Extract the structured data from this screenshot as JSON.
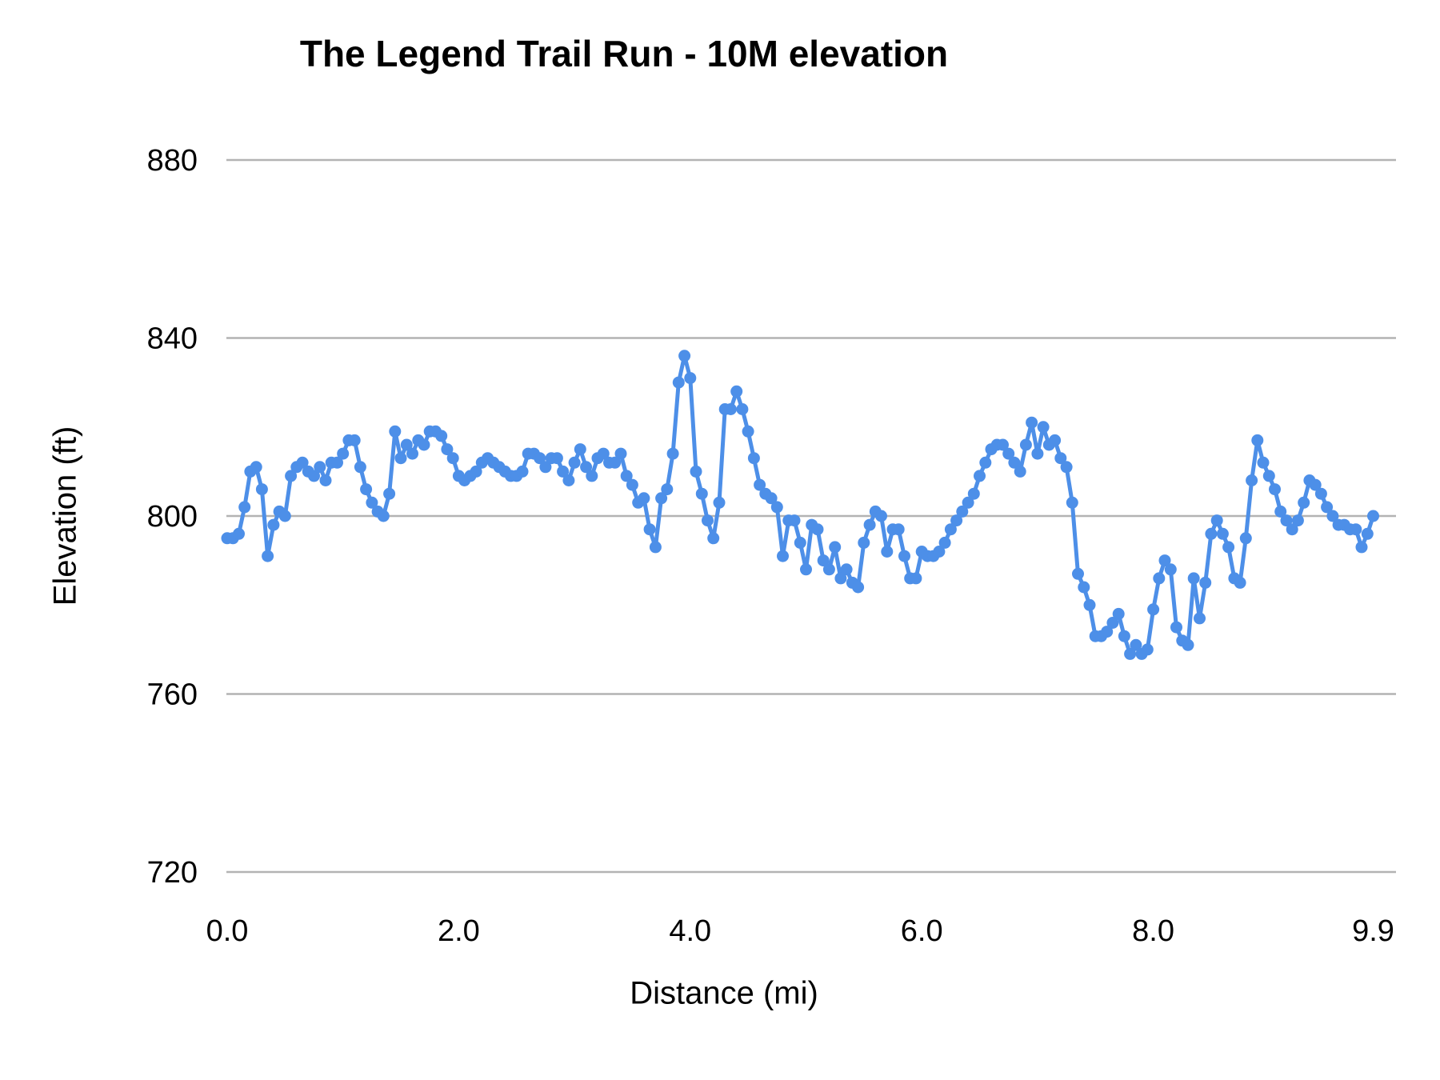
{
  "title": "The Legend Trail Run - 10M elevation",
  "axes": {
    "x_label": "Distance (mi)",
    "y_label": "Elevation (ft)"
  },
  "style": {
    "line_color": "#4d8fe8",
    "grid_color": "#b3b3b3",
    "text_color": "#000000",
    "background": "#ffffff"
  },
  "chart_data": {
    "type": "line",
    "title": "The Legend Trail Run - 10M elevation",
    "xlabel": "Distance (mi)",
    "ylabel": "Elevation (ft)",
    "xlim": [
      0,
      9.9
    ],
    "ylim": [
      720,
      880
    ],
    "grid": "horizontal",
    "marker": "circle",
    "legend": "none",
    "x_ticks": [
      {
        "value": 0.0,
        "label": "0.0"
      },
      {
        "value": 2.0,
        "label": "2.0"
      },
      {
        "value": 4.0,
        "label": "4.0"
      },
      {
        "value": 6.0,
        "label": "6.0"
      },
      {
        "value": 8.0,
        "label": "8.0"
      },
      {
        "value": 9.9,
        "label": "9.9"
      }
    ],
    "y_ticks": [
      {
        "value": 720,
        "label": "720"
      },
      {
        "value": 760,
        "label": "760"
      },
      {
        "value": 800,
        "label": "800"
      },
      {
        "value": 840,
        "label": "840"
      },
      {
        "value": 880,
        "label": "880"
      }
    ],
    "series": [
      {
        "name": "elevation",
        "color": "#4d8fe8",
        "x": [
          0.0,
          0.05,
          0.1,
          0.15,
          0.2,
          0.25,
          0.3,
          0.35,
          0.4,
          0.45,
          0.5,
          0.55,
          0.6,
          0.65,
          0.7,
          0.75,
          0.8,
          0.85,
          0.9,
          0.95,
          1.0,
          1.05,
          1.1,
          1.15,
          1.2,
          1.25,
          1.3,
          1.35,
          1.4,
          1.45,
          1.5,
          1.55,
          1.6,
          1.65,
          1.7,
          1.75,
          1.8,
          1.85,
          1.9,
          1.95,
          2.0,
          2.05,
          2.1,
          2.15,
          2.2,
          2.25,
          2.3,
          2.35,
          2.4,
          2.45,
          2.5,
          2.55,
          2.6,
          2.65,
          2.7,
          2.75,
          2.8,
          2.85,
          2.9,
          2.95,
          3.0,
          3.05,
          3.1,
          3.15,
          3.2,
          3.25,
          3.3,
          3.35,
          3.4,
          3.45,
          3.5,
          3.55,
          3.6,
          3.65,
          3.7,
          3.75,
          3.8,
          3.85,
          3.9,
          3.95,
          4.0,
          4.05,
          4.1,
          4.15,
          4.2,
          4.25,
          4.3,
          4.35,
          4.4,
          4.45,
          4.5,
          4.55,
          4.6,
          4.65,
          4.7,
          4.75,
          4.8,
          4.85,
          4.9,
          4.95,
          5.0,
          5.05,
          5.1,
          5.15,
          5.2,
          5.25,
          5.3,
          5.35,
          5.4,
          5.45,
          5.5,
          5.55,
          5.6,
          5.65,
          5.7,
          5.75,
          5.8,
          5.85,
          5.9,
          5.95,
          6.0,
          6.05,
          6.1,
          6.15,
          6.2,
          6.25,
          6.3,
          6.35,
          6.4,
          6.45,
          6.5,
          6.55,
          6.6,
          6.65,
          6.7,
          6.75,
          6.8,
          6.85,
          6.9,
          6.95,
          7.0,
          7.05,
          7.1,
          7.15,
          7.2,
          7.25,
          7.3,
          7.35,
          7.4,
          7.45,
          7.5,
          7.55,
          7.6,
          7.65,
          7.7,
          7.75,
          7.8,
          7.85,
          7.9,
          7.95,
          8.0,
          8.05,
          8.1,
          8.15,
          8.2,
          8.25,
          8.3,
          8.35,
          8.4,
          8.45,
          8.5,
          8.55,
          8.6,
          8.65,
          8.7,
          8.75,
          8.8,
          8.85,
          8.9,
          8.95,
          9.0,
          9.05,
          9.1,
          9.15,
          9.2,
          9.25,
          9.3,
          9.35,
          9.4,
          9.45,
          9.5,
          9.55,
          9.6,
          9.65,
          9.7,
          9.75,
          9.8,
          9.85,
          9.9
        ],
        "y": [
          795,
          795,
          796,
          802,
          810,
          811,
          806,
          791,
          798,
          801,
          800,
          809,
          811,
          812,
          810,
          809,
          811,
          808,
          812,
          812,
          814,
          817,
          817,
          811,
          806,
          803,
          801,
          800,
          805,
          819,
          813,
          816,
          814,
          817,
          816,
          819,
          819,
          818,
          815,
          813,
          809,
          808,
          809,
          810,
          812,
          813,
          812,
          811,
          810,
          809,
          809,
          810,
          814,
          814,
          813,
          811,
          813,
          813,
          810,
          808,
          812,
          815,
          811,
          809,
          813,
          814,
          812,
          812,
          814,
          809,
          807,
          803,
          804,
          797,
          793,
          804,
          806,
          814,
          830,
          836,
          831,
          810,
          805,
          799,
          795,
          803,
          824,
          824,
          828,
          824,
          819,
          813,
          807,
          805,
          804,
          802,
          791,
          799,
          799,
          794,
          788,
          798,
          797,
          790,
          788,
          793,
          786,
          788,
          785,
          784,
          794,
          798,
          801,
          800,
          792,
          797,
          797,
          791,
          786,
          786,
          792,
          791,
          791,
          792,
          794,
          797,
          799,
          801,
          803,
          805,
          809,
          812,
          815,
          816,
          816,
          814,
          812,
          810,
          816,
          821,
          814,
          820,
          816,
          817,
          813,
          811,
          803,
          787,
          784,
          780,
          773,
          773,
          774,
          776,
          778,
          773,
          769,
          771,
          769,
          770,
          779,
          786,
          790,
          788,
          775,
          772,
          771,
          786,
          777,
          785,
          796,
          799,
          796,
          793,
          786,
          785,
          795,
          808,
          817,
          812,
          809,
          806,
          801,
          799,
          797,
          799,
          803,
          808,
          807,
          805,
          802,
          800,
          798,
          798,
          797,
          797,
          793,
          796,
          800
        ]
      }
    ]
  }
}
